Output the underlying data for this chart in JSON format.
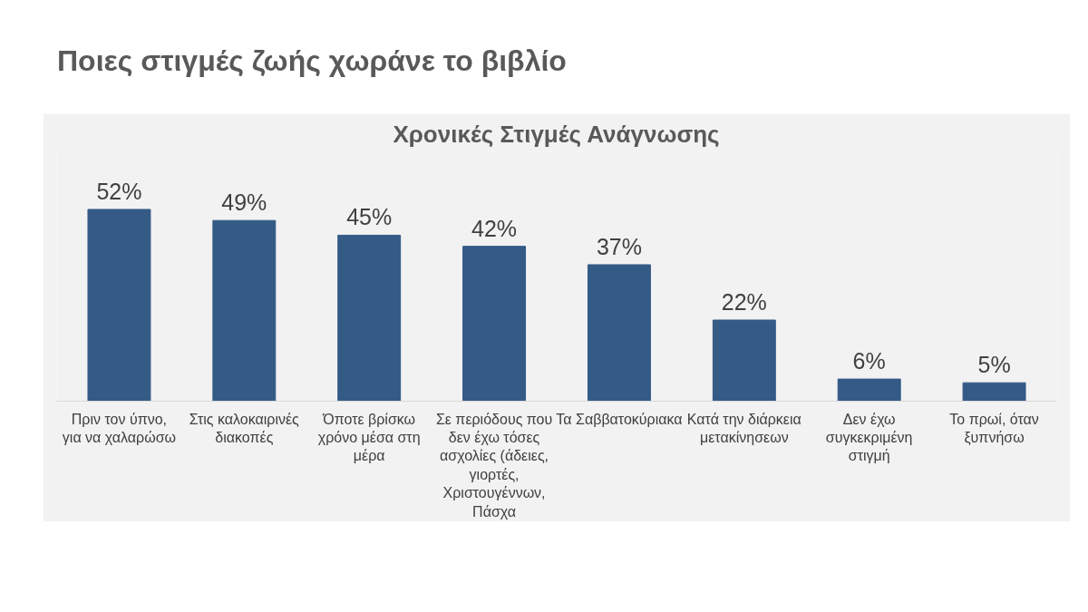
{
  "chart_data": {
    "type": "bar",
    "title": "Ποιες στιγμές ζωής χωράνε το βιβλίο",
    "subtitle": "Χρονικές Στιγμές Ανάγνωσης",
    "categories": [
      "Πριν τον ύπνο, για να χαλαρώσω",
      "Στις καλοκαιρινές διακοπές",
      "Όποτε βρίσκω χρόνο μέσα στη μέρα",
      "Σε περιόδους που δεν έχω τόσες ασχολίες (άδειες, γιορτές, Χριστουγέννων, Πάσχα",
      "Τα Σαββατοκύριακα",
      "Κατά την διάρκεια μετακίνησεων",
      "Δεν έχω συγκεκριμένη στιγμή",
      "Το πρωί, όταν ξυπνήσω"
    ],
    "values": [
      52,
      49,
      45,
      42,
      37,
      22,
      6,
      5
    ],
    "value_labels": [
      "52%",
      "49%",
      "45%",
      "42%",
      "37%",
      "22%",
      "6%",
      "5%"
    ],
    "color": "#345a86",
    "grid": false
  }
}
